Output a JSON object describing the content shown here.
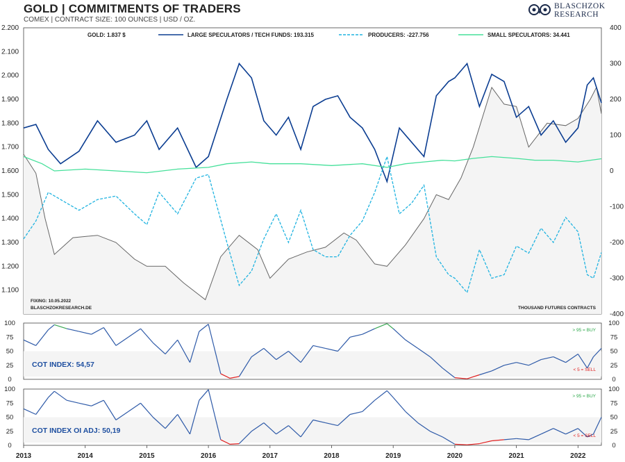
{
  "header": {
    "title": "GOLD | COMMITMENTS OF TRADERS",
    "subtitle": "COMEX | CONTRACT SIZE: 100 OUNCES | USD / OZ.",
    "logo_line1": "BLASCHZOK",
    "logo_line2": "RESEARCH"
  },
  "chart_data": [
    {
      "type": "line",
      "panel": "main",
      "x_ticks": [
        "2013",
        "2014",
        "2015",
        "2016",
        "2017",
        "2018",
        "2019",
        "2020",
        "2021",
        "2022"
      ],
      "x_range": [
        2013.0,
        2022.38
      ],
      "y_left_range": [
        1000,
        2200
      ],
      "y_left_ticks": [
        "2.200",
        "2.100",
        "2.000",
        "1.900",
        "1.800",
        "1.700",
        "1.600",
        "1.500",
        "1.400",
        "1.300",
        "1.200",
        "1.100"
      ],
      "y_right_range": [
        -400,
        400
      ],
      "y_right_ticks": [
        "400",
        "300",
        "200",
        "100",
        "0",
        "-100",
        "-200",
        "-300",
        "-400"
      ],
      "legend": [
        {
          "label": "GOLD: 1.837 $",
          "color": "#666666",
          "style": "solid"
        },
        {
          "label": "LARGE SPECULATORS / TECH FUNDS: 193.315",
          "color": "#0b3d91",
          "style": "solid"
        },
        {
          "label": "PRODUCERS: -227.756",
          "color": "#1fb3e0",
          "style": "dashed"
        },
        {
          "label": "SMALL SPECULATORS: 34.441",
          "color": "#45e09a",
          "style": "solid"
        }
      ],
      "annotations": {
        "fixing": "FIXING:  10.05.2022",
        "source": "BLASCHZOKRESEARCH.DE",
        "units": "THOUSAND FUTURES CONTRACTS"
      },
      "series": [
        {
          "name": "GOLD",
          "axis": "left",
          "color": "#666666",
          "x": [
            2013.0,
            2013.2,
            2013.35,
            2013.5,
            2013.8,
            2014.2,
            2014.5,
            2014.8,
            2015.0,
            2015.3,
            2015.6,
            2015.95,
            2016.2,
            2016.5,
            2016.8,
            2017.0,
            2017.3,
            2017.6,
            2017.9,
            2018.2,
            2018.4,
            2018.7,
            2018.9,
            2019.2,
            2019.5,
            2019.7,
            2019.9,
            2020.1,
            2020.3,
            2020.6,
            2020.8,
            2021.0,
            2021.2,
            2021.5,
            2021.8,
            2022.0,
            2022.2,
            2022.3,
            2022.38
          ],
          "y": [
            1670,
            1590,
            1400,
            1250,
            1320,
            1330,
            1300,
            1230,
            1200,
            1200,
            1130,
            1060,
            1240,
            1330,
            1270,
            1150,
            1230,
            1260,
            1280,
            1340,
            1310,
            1210,
            1200,
            1290,
            1400,
            1500,
            1480,
            1570,
            1700,
            1950,
            1880,
            1870,
            1700,
            1800,
            1790,
            1820,
            1900,
            1950,
            1840
          ]
        },
        {
          "name": "LARGE SPECULATORS / TECH FUNDS",
          "axis": "right",
          "color": "#0b3d91",
          "dash": false,
          "x": [
            2013.0,
            2013.2,
            2013.4,
            2013.6,
            2013.9,
            2014.2,
            2014.5,
            2014.8,
            2015.0,
            2015.2,
            2015.5,
            2015.8,
            2016.0,
            2016.3,
            2016.5,
            2016.7,
            2016.9,
            2017.1,
            2017.3,
            2017.5,
            2017.7,
            2017.9,
            2018.1,
            2018.3,
            2018.5,
            2018.7,
            2018.9,
            2019.1,
            2019.3,
            2019.5,
            2019.7,
            2019.9,
            2020.0,
            2020.2,
            2020.4,
            2020.6,
            2020.8,
            2021.0,
            2021.2,
            2021.4,
            2021.6,
            2021.8,
            2022.0,
            2022.15,
            2022.25,
            2022.38
          ],
          "y": [
            120,
            130,
            60,
            20,
            55,
            140,
            80,
            100,
            140,
            60,
            120,
            10,
            40,
            200,
            300,
            260,
            140,
            100,
            150,
            60,
            180,
            200,
            210,
            150,
            120,
            60,
            -30,
            120,
            80,
            40,
            210,
            250,
            260,
            300,
            180,
            270,
            250,
            150,
            180,
            100,
            140,
            80,
            120,
            240,
            260,
            190
          ]
        },
        {
          "name": "PRODUCERS",
          "axis": "right",
          "color": "#1fb3e0",
          "dash": true,
          "x": [
            2013.0,
            2013.2,
            2013.4,
            2013.6,
            2013.9,
            2014.2,
            2014.5,
            2014.8,
            2015.0,
            2015.2,
            2015.5,
            2015.8,
            2016.0,
            2016.3,
            2016.5,
            2016.7,
            2016.9,
            2017.1,
            2017.3,
            2017.5,
            2017.7,
            2017.9,
            2018.1,
            2018.3,
            2018.5,
            2018.7,
            2018.9,
            2019.1,
            2019.3,
            2019.5,
            2019.7,
            2019.9,
            2020.0,
            2020.2,
            2020.4,
            2020.6,
            2020.8,
            2021.0,
            2021.2,
            2021.4,
            2021.6,
            2021.8,
            2022.0,
            2022.15,
            2022.25,
            2022.38
          ],
          "y": [
            -190,
            -140,
            -60,
            -80,
            -110,
            -80,
            -70,
            -120,
            -150,
            -60,
            -120,
            -20,
            -10,
            -200,
            -320,
            -280,
            -190,
            -120,
            -200,
            -110,
            -220,
            -240,
            -240,
            -180,
            -140,
            -60,
            40,
            -120,
            -90,
            -40,
            -240,
            -290,
            -300,
            -340,
            -220,
            -300,
            -290,
            -210,
            -230,
            -160,
            -200,
            -130,
            -170,
            -290,
            -300,
            -228
          ]
        },
        {
          "name": "SMALL SPECULATORS",
          "axis": "right",
          "color": "#45e09a",
          "dash": false,
          "x": [
            2013.0,
            2013.3,
            2013.5,
            2014.0,
            2014.5,
            2015.0,
            2015.5,
            2016.0,
            2016.3,
            2016.7,
            2017.0,
            2017.5,
            2018.0,
            2018.5,
            2018.9,
            2019.2,
            2019.5,
            2019.8,
            2020.0,
            2020.3,
            2020.6,
            2021.0,
            2021.3,
            2021.6,
            2022.0,
            2022.38
          ],
          "y": [
            40,
            20,
            0,
            5,
            0,
            -5,
            5,
            10,
            20,
            25,
            20,
            20,
            15,
            20,
            10,
            20,
            25,
            30,
            28,
            35,
            40,
            35,
            30,
            30,
            25,
            34
          ]
        }
      ]
    },
    {
      "type": "line",
      "panel": "cot-index",
      "label": "COT INDEX: 54,57",
      "value": 54.57,
      "y_ticks": [
        "100",
        "75",
        "50",
        "25",
        "0"
      ],
      "y_range": [
        0,
        100
      ],
      "buy_label": "> 95 = BUY",
      "sell_label": "< 5 = SELL",
      "x": [
        2013.0,
        2013.2,
        2013.4,
        2013.5,
        2013.7,
        2013.9,
        2014.1,
        2014.3,
        2014.5,
        2014.7,
        2014.9,
        2015.1,
        2015.3,
        2015.5,
        2015.7,
        2015.85,
        2016.0,
        2016.2,
        2016.35,
        2016.5,
        2016.7,
        2016.9,
        2017.1,
        2017.3,
        2017.5,
        2017.7,
        2017.9,
        2018.1,
        2018.3,
        2018.5,
        2018.7,
        2018.9,
        2019.0,
        2019.2,
        2019.4,
        2019.6,
        2019.8,
        2020.0,
        2020.2,
        2020.4,
        2020.6,
        2020.8,
        2021.0,
        2021.2,
        2021.4,
        2021.6,
        2021.8,
        2022.0,
        2022.15,
        2022.25,
        2022.38
      ],
      "y": [
        70,
        60,
        88,
        97,
        90,
        85,
        80,
        92,
        60,
        75,
        90,
        65,
        45,
        70,
        30,
        85,
        98,
        10,
        2,
        5,
        40,
        55,
        35,
        50,
        30,
        60,
        55,
        50,
        75,
        80,
        90,
        99,
        90,
        70,
        55,
        40,
        20,
        3,
        1,
        8,
        15,
        25,
        30,
        25,
        35,
        40,
        30,
        45,
        20,
        40,
        55
      ]
    },
    {
      "type": "line",
      "panel": "cot-index-oi-adj",
      "label": "COT INDEX OI ADJ: 50,19",
      "value": 50.19,
      "y_ticks": [
        "100",
        "75",
        "50",
        "25",
        "0"
      ],
      "y_range": [
        0,
        100
      ],
      "buy_label": "> 95 = BUY",
      "sell_label": "< 5 = SELL",
      "x": [
        2013.0,
        2013.2,
        2013.4,
        2013.5,
        2013.7,
        2013.9,
        2014.1,
        2014.3,
        2014.5,
        2014.7,
        2014.9,
        2015.1,
        2015.3,
        2015.5,
        2015.7,
        2015.85,
        2016.0,
        2016.2,
        2016.35,
        2016.5,
        2016.7,
        2016.9,
        2017.1,
        2017.3,
        2017.5,
        2017.7,
        2017.9,
        2018.1,
        2018.3,
        2018.5,
        2018.7,
        2018.9,
        2019.0,
        2019.2,
        2019.4,
        2019.6,
        2019.8,
        2020.0,
        2020.2,
        2020.4,
        2020.6,
        2020.8,
        2021.0,
        2021.2,
        2021.4,
        2021.6,
        2021.8,
        2022.0,
        2022.15,
        2022.25,
        2022.38
      ],
      "y": [
        65,
        55,
        85,
        96,
        80,
        75,
        70,
        80,
        45,
        60,
        75,
        50,
        30,
        55,
        20,
        80,
        99,
        10,
        2,
        3,
        25,
        40,
        20,
        35,
        15,
        45,
        40,
        35,
        55,
        60,
        80,
        97,
        85,
        60,
        40,
        25,
        15,
        2,
        1,
        3,
        8,
        10,
        12,
        10,
        20,
        30,
        20,
        30,
        15,
        20,
        50
      ]
    }
  ]
}
